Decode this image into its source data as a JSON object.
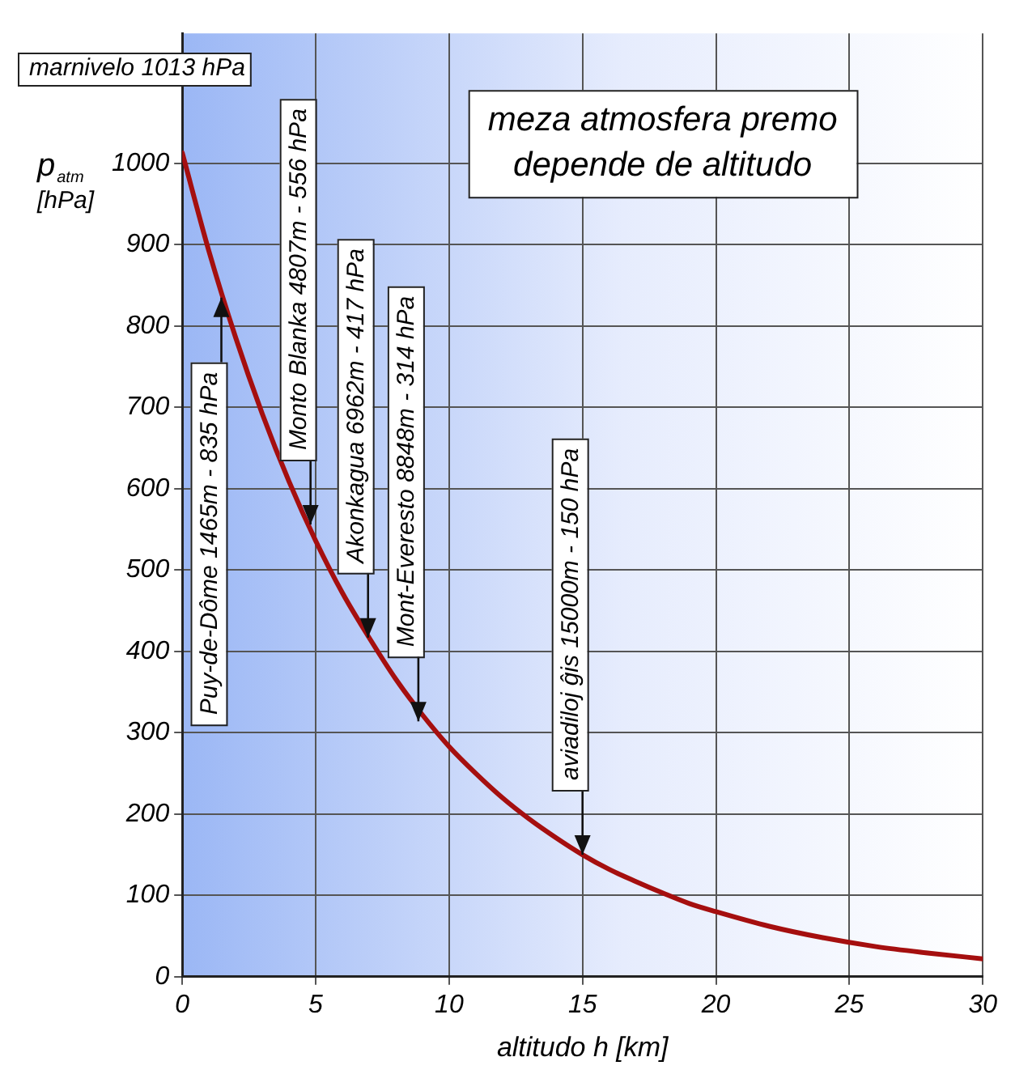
{
  "chart_data": {
    "type": "line",
    "title": "meza atmosfera premo depende de altitudo",
    "xlabel": "altitudo h [km]",
    "ylabel": "p$_{atm}$ [hPa]",
    "x": [
      0,
      1,
      2,
      3,
      4,
      5,
      6,
      7,
      8,
      9,
      10,
      11,
      12,
      13,
      14,
      15,
      16,
      17,
      18,
      19,
      20,
      22,
      24,
      26,
      28,
      30
    ],
    "series": [
      {
        "color": "#a50f0f",
        "values": [
          1013,
          892,
          786,
          692,
          609,
          536,
          472,
          417,
          366,
          322,
          283,
          250,
          220,
          194,
          171,
          150,
          132,
          117,
          103,
          90,
          80,
          62,
          48,
          37,
          29,
          22
        ]
      }
    ],
    "xlim": [
      0,
      30
    ],
    "xticks": [
      0,
      5,
      10,
      15,
      20,
      25,
      30
    ],
    "ylim": [
      0,
      1160
    ],
    "yticks": [
      0,
      100,
      200,
      300,
      400,
      500,
      600,
      700,
      800,
      900,
      1000
    ],
    "grid": true,
    "legend": false,
    "marker": "none",
    "line_style": "solid",
    "annotations": [
      {
        "text": "marnivelo 1013 hPa",
        "x": 0,
        "y": 1013
      },
      {
        "text": "Puy-de-Dôme 1465m - 835 hPa",
        "x": 1.465,
        "y": 835
      },
      {
        "text": "Monto Blanka 4807m - 556 hPa",
        "x": 4.807,
        "y": 556
      },
      {
        "text": "Akonkagua 6962m - 417 hPa",
        "x": 6.962,
        "y": 417
      },
      {
        "text": "Mont-Everesto 8848m - 314 hPa",
        "x": 8.848,
        "y": 314
      },
      {
        "text": "aviadiloj ĝis 15000m - 150 hPa",
        "x": 15,
        "y": 150
      }
    ]
  }
}
